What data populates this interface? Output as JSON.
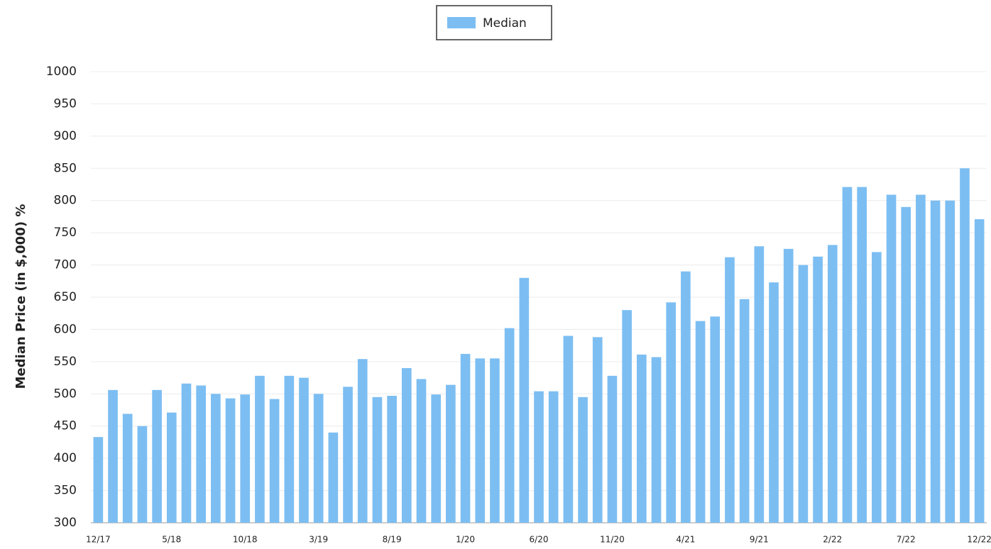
{
  "chart_data": {
    "type": "bar",
    "y_label": "Median Price (in $,000) %",
    "categories": [
      "12/17",
      null,
      null,
      null,
      null,
      "5/18",
      null,
      null,
      null,
      null,
      "10/18",
      null,
      null,
      null,
      null,
      "3/19",
      null,
      null,
      null,
      null,
      "8/19",
      null,
      null,
      null,
      null,
      "1/20",
      null,
      null,
      null,
      null,
      "6/20",
      null,
      null,
      null,
      null,
      "11/20",
      null,
      null,
      null,
      null,
      "4/21",
      null,
      null,
      null,
      null,
      "9/21",
      null,
      null,
      null,
      null,
      "2/22",
      null,
      null,
      null,
      null,
      "7/22",
      null,
      null,
      null,
      null,
      "12/22"
    ],
    "series": [
      {
        "name": "Median",
        "color": "#7cbef2",
        "values": [
          433,
          506,
          469,
          450,
          506,
          471,
          516,
          513,
          500,
          493,
          499,
          528,
          492,
          528,
          525,
          500,
          440,
          511,
          554,
          495,
          497,
          540,
          523,
          499,
          514,
          562,
          555,
          555,
          602,
          680,
          504,
          504,
          590,
          495,
          588,
          528,
          630,
          561,
          557,
          642,
          690,
          613,
          620,
          712,
          647,
          729,
          673,
          725,
          700,
          713,
          731,
          821,
          821,
          720,
          809,
          790,
          809,
          800,
          800,
          850,
          771
        ]
      }
    ],
    "ylim": [
      300,
      1000
    ],
    "yticks": [
      300,
      350,
      400,
      450,
      500,
      550,
      600,
      650,
      700,
      750,
      800,
      850,
      900,
      950,
      1000
    ],
    "grid": true,
    "legend": "top"
  }
}
